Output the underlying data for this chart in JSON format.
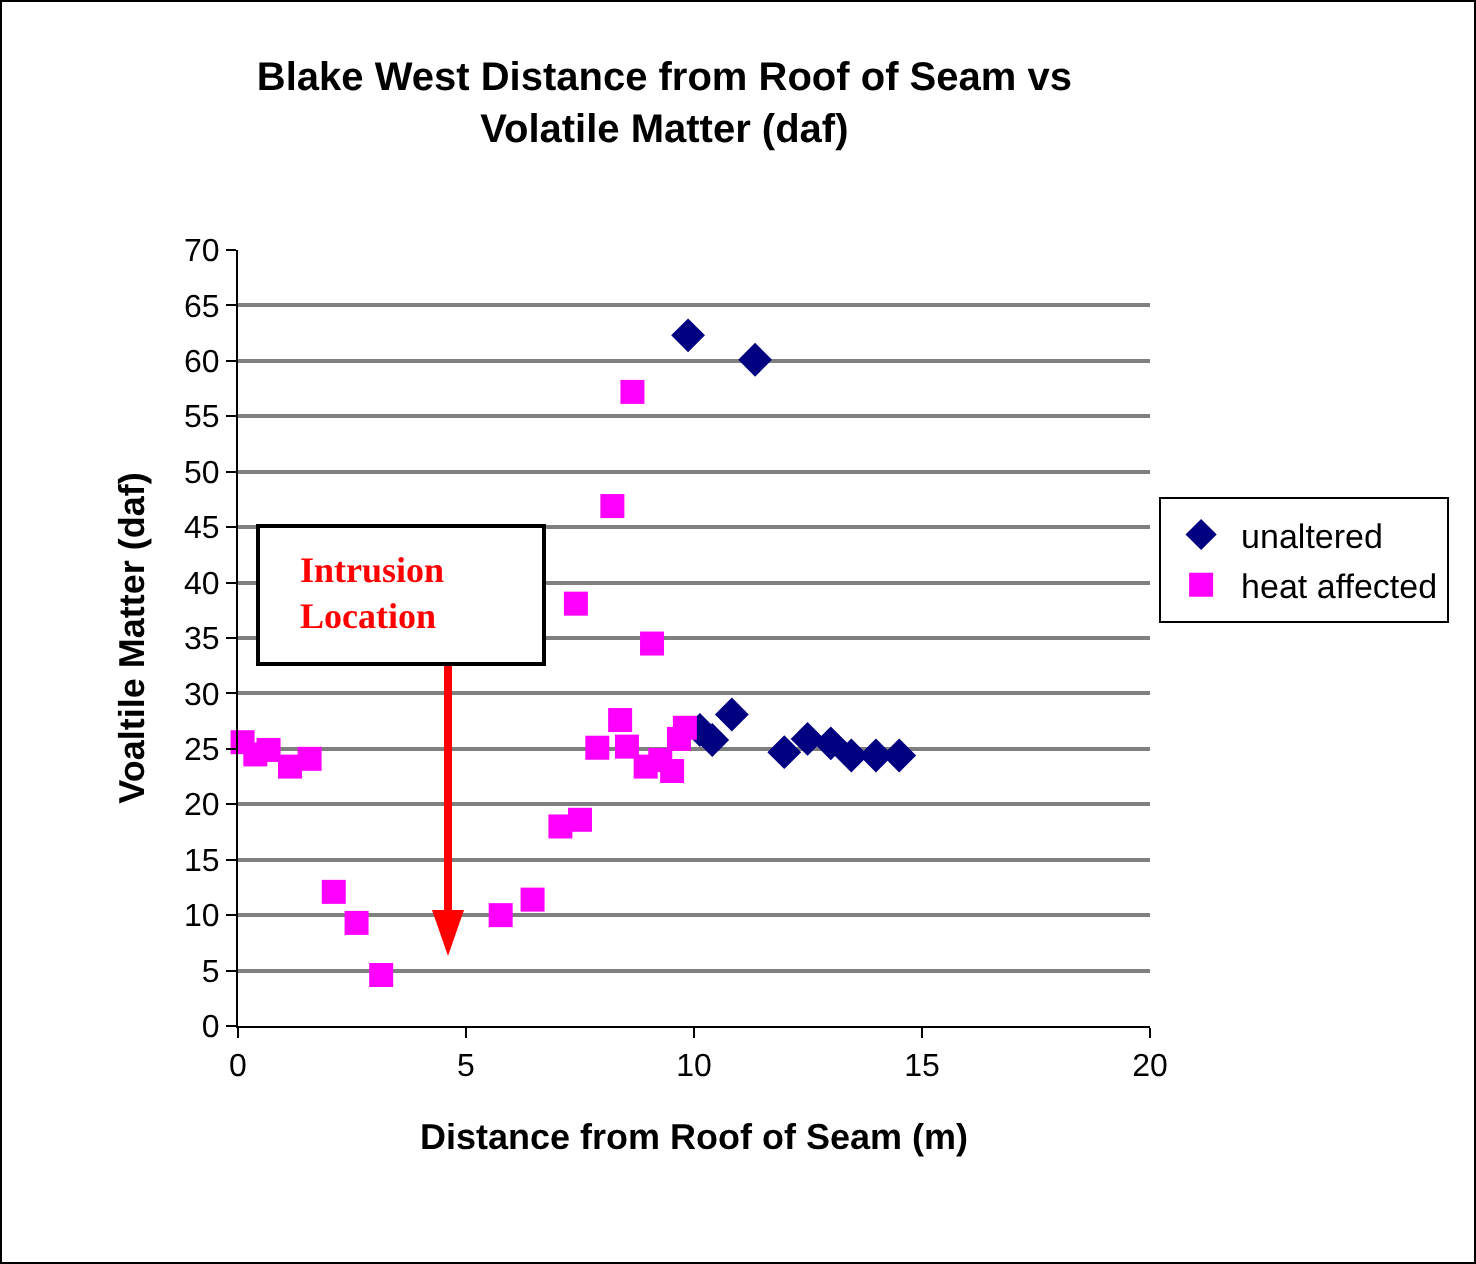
{
  "chart_data": {
    "type": "scatter",
    "title": "Blake West Distance from Roof of Seam vs Volatile Matter (daf)",
    "xlabel": "Distance from Roof of Seam (m)",
    "ylabel": "Voaltile Matter (daf)",
    "xlim": [
      0,
      20
    ],
    "xticks": [
      0,
      5,
      10,
      15,
      20
    ],
    "ylim": [
      0,
      70
    ],
    "yticks": [
      0,
      5,
      10,
      15,
      20,
      25,
      30,
      35,
      40,
      45,
      50,
      55,
      60,
      65,
      70
    ],
    "grid": "y",
    "legend": "right",
    "series": [
      {
        "name": "unaltered",
        "color": "#000080",
        "marker": "diamond",
        "x": [
          9.87,
          11.34,
          10.13,
          10.4,
          10.83,
          11.98,
          12.49,
          13.0,
          13.45,
          13.99,
          14.5
        ],
        "values": [
          62.3,
          60.1,
          26.7,
          25.8,
          28.1,
          24.7,
          25.9,
          25.5,
          24.4,
          24.4,
          24.4
        ]
      },
      {
        "name": "heat affected",
        "color": "#ff00ff",
        "marker": "square",
        "x": [
          0.1,
          0.38,
          0.67,
          1.14,
          1.57,
          2.1,
          2.6,
          3.14,
          5.76,
          6.46,
          7.07,
          7.5,
          7.41,
          7.88,
          8.21,
          8.38,
          8.53,
          8.65,
          8.94,
          9.08,
          9.26,
          9.52,
          9.67,
          9.8
        ],
        "values": [
          25.6,
          24.5,
          24.9,
          23.4,
          24.1,
          12.1,
          9.3,
          4.6,
          10.0,
          11.4,
          18.0,
          18.6,
          38.1,
          25.1,
          46.9,
          27.6,
          25.2,
          57.2,
          23.4,
          34.5,
          24.0,
          23.0,
          25.9,
          26.9
        ]
      }
    ],
    "annotations": [
      "Intrusion Location"
    ]
  }
}
